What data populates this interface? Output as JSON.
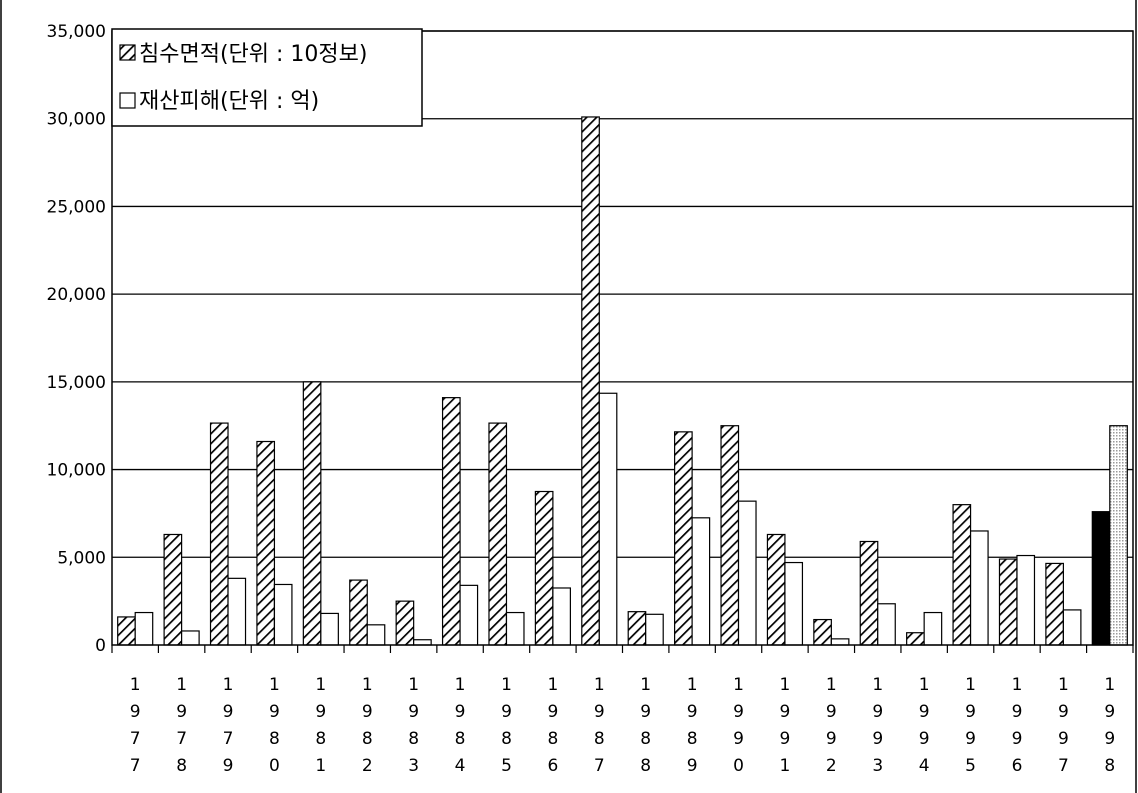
{
  "chart_data": {
    "type": "bar",
    "categories": [
      "1977",
      "1978",
      "1979",
      "1980",
      "1981",
      "1982",
      "1983",
      "1984",
      "1985",
      "1986",
      "1987",
      "1988",
      "1989",
      "1990",
      "1991",
      "1992",
      "1993",
      "1994",
      "1995",
      "1996",
      "1997",
      "1998"
    ],
    "series": [
      {
        "name": "침수면적(단위 : 10정보)",
        "values": [
          1600,
          6300,
          12650,
          11600,
          15000,
          3700,
          2500,
          14100,
          12650,
          8750,
          30100,
          1900,
          12150,
          12500,
          6300,
          1450,
          5900,
          700,
          8000,
          4900,
          4650,
          7600
        ],
        "pattern": "diagonal-hatch"
      },
      {
        "name": "재산피해(단위 : 억)",
        "values": [
          1850,
          800,
          3800,
          3450,
          1800,
          1150,
          300,
          3400,
          1850,
          3250,
          14350,
          1750,
          7250,
          8200,
          4700,
          350,
          2350,
          1850,
          6500,
          5100,
          2000,
          12500
        ],
        "pattern": "white"
      }
    ],
    "highlight": {
      "category": "1998",
      "series1_color": "#000000",
      "series2_color": "#d8d8d8"
    },
    "ylim": [
      0,
      35000
    ],
    "yticks": [
      "0",
      "5,000",
      "10,000",
      "15,000",
      "20,000",
      "25,000",
      "30,000",
      "35,000"
    ],
    "grid": true,
    "legend_position": "top-left",
    "xlabel": "",
    "ylabel": ""
  }
}
